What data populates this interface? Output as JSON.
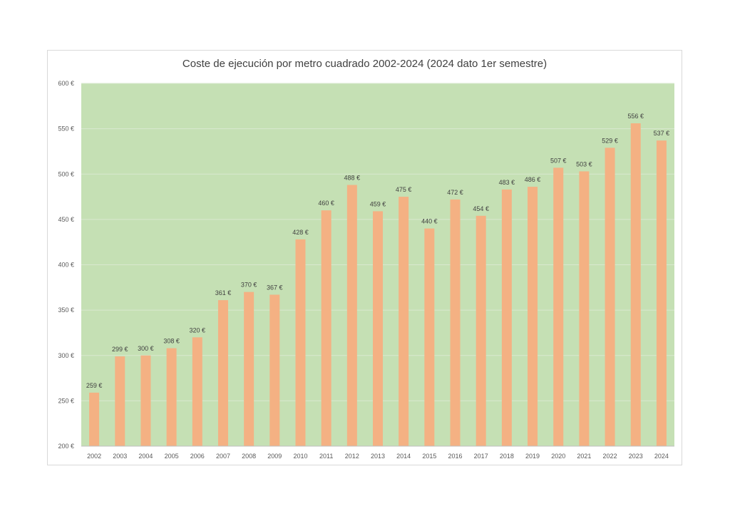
{
  "chart_data": {
    "type": "bar",
    "title": "Coste de ejecución por metro cuadrado 2002-2024 (2024 dato 1er semestre)",
    "categories": [
      "2002",
      "2003",
      "2004",
      "2005",
      "2006",
      "2007",
      "2008",
      "2009",
      "2010",
      "2011",
      "2012",
      "2013",
      "2014",
      "2015",
      "2016",
      "2017",
      "2018",
      "2019",
      "2020",
      "2021",
      "2022",
      "2023",
      "2024"
    ],
    "values": [
      259,
      299,
      300,
      308,
      320,
      361,
      370,
      367,
      428,
      460,
      488,
      459,
      475,
      440,
      472,
      454,
      483,
      486,
      507,
      503,
      529,
      556,
      537
    ],
    "data_labels": [
      "259 €",
      "299 €",
      "300 €",
      "308 €",
      "320 €",
      "361 €",
      "370 €",
      "367 €",
      "428 €",
      "460 €",
      "488 €",
      "459 €",
      "475 €",
      "440 €",
      "472 €",
      "454 €",
      "483 €",
      "486 €",
      "507 €",
      "503 €",
      "529 €",
      "556 €",
      "537 €"
    ],
    "ylim": [
      200,
      600
    ],
    "yticks": [
      200,
      250,
      300,
      350,
      400,
      450,
      500,
      550,
      600
    ],
    "ytick_labels": [
      "200 €",
      "250 €",
      "300 €",
      "350 €",
      "400 €",
      "450 €",
      "500 €",
      "550 €",
      "600 €"
    ],
    "xlabel": "",
    "ylabel": "",
    "grid": true,
    "colors": {
      "bar": "#F4B183",
      "plot_background": "#C5E0B4",
      "gridline": "#D9E8CF",
      "axis": "#bfbfbf"
    }
  }
}
